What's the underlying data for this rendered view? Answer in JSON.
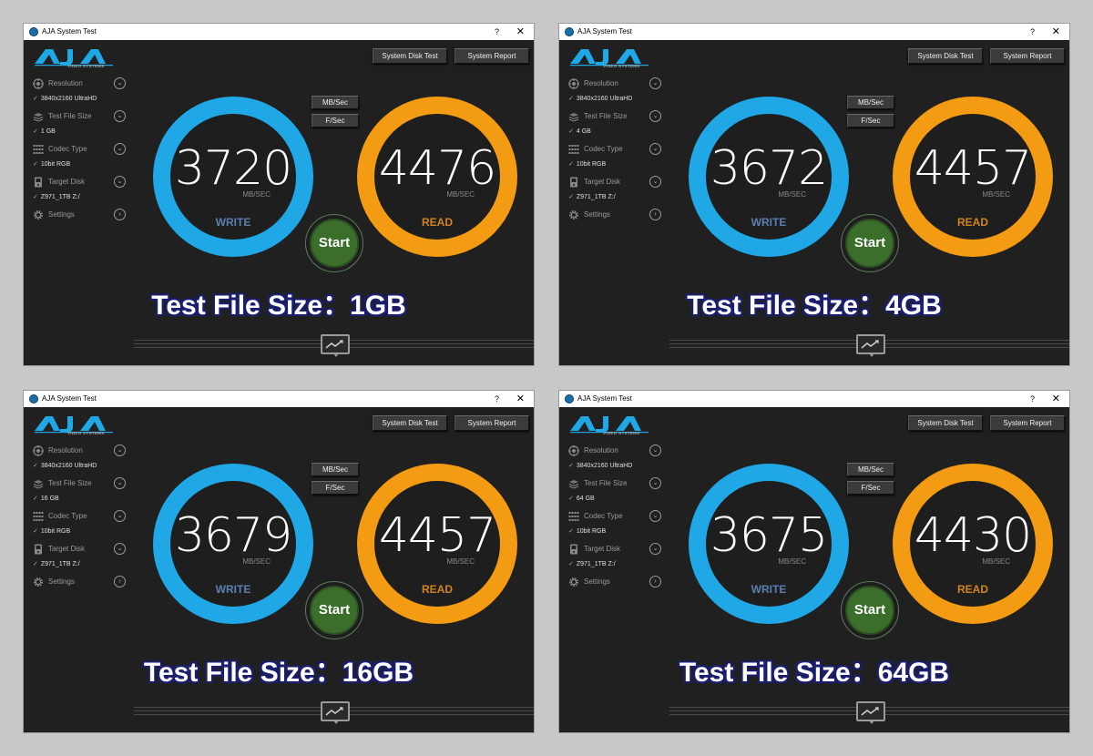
{
  "app": {
    "title": "AJA System Test",
    "help_glyph": "?",
    "close_glyph": "✕",
    "logo_text": "AJA",
    "logo_sub": "VIDEO SYSTEMS"
  },
  "buttons": {
    "system_disk_test": "System Disk Test",
    "system_report": "System Report",
    "mb_sec": "MB/Sec",
    "f_sec": "F/Sec",
    "start": "Start"
  },
  "labels": {
    "resolution": "Resolution",
    "test_file_size": "Test File Size",
    "codec_type": "Codec Type",
    "target_disk": "Target Disk",
    "settings": "Settings",
    "write": "WRITE",
    "read": "READ",
    "unit": "MB/SEC",
    "check": "✓"
  },
  "colors": {
    "write_ring": "#1fa7e6",
    "read_ring": "#f39b12",
    "start_button": "#3a6e2a",
    "caption_outline": "#1a1e6e"
  },
  "icons": [
    "resolution-icon",
    "file-size-icon",
    "codec-icon",
    "disk-icon",
    "gear-icon",
    "chevron-down-icon",
    "chevron-right-icon",
    "graph-icon"
  ],
  "panels": [
    {
      "resolution": "3840x2160 UltraHD",
      "file_size": "1 GB",
      "codec": "10bit RGB",
      "disk": "Z971_1TB Z:/",
      "write": "3720",
      "read": "4476",
      "caption": "Test File Size：1GB"
    },
    {
      "resolution": "3840x2160 UltraHD",
      "file_size": "4 GB",
      "codec": "10bit RGB",
      "disk": "Z971_1TB Z:/",
      "write": "3672",
      "read": "4457",
      "caption": "Test File Size：4GB"
    },
    {
      "resolution": "3840x2160 UltraHD",
      "file_size": "16 GB",
      "codec": "10bit RGB",
      "disk": "Z971_1TB Z:/",
      "write": "3679",
      "read": "4457",
      "caption": "Test File Size：16GB"
    },
    {
      "resolution": "3840x2160 UltraHD",
      "file_size": "64 GB",
      "codec": "10bit RGB",
      "disk": "Z971_1TB Z:/",
      "write": "3675",
      "read": "4430",
      "caption": "Test File Size：64GB"
    }
  ]
}
